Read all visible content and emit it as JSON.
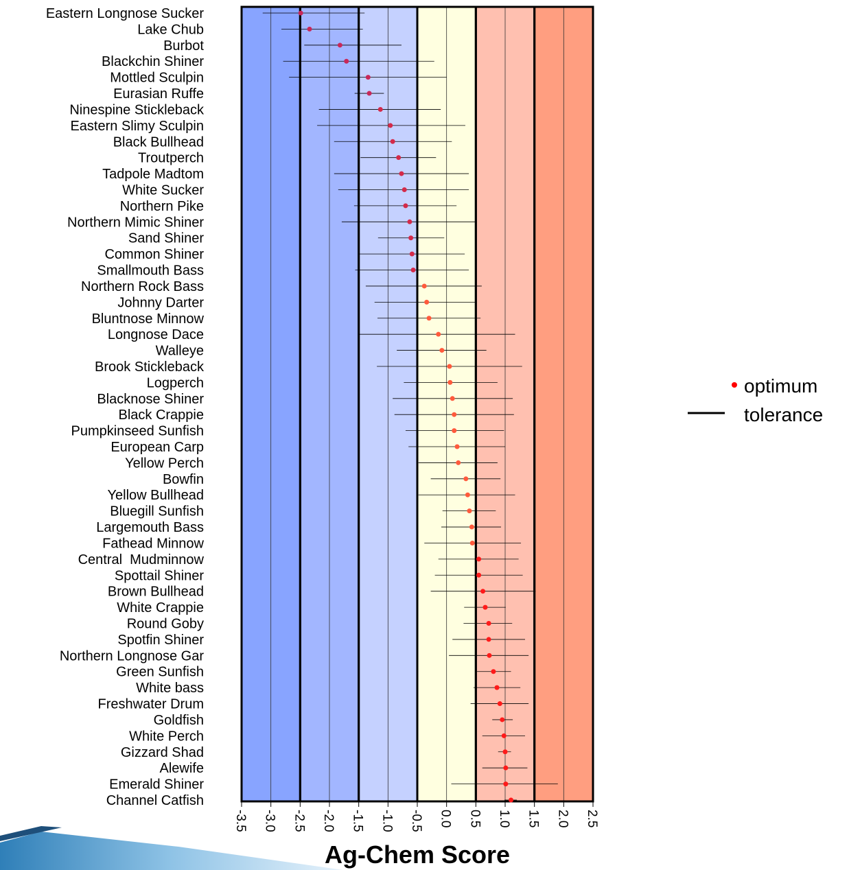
{
  "chart_data": {
    "type": "dotplot",
    "x_label": "Ag-Chem Score",
    "xlim": [
      -3.5,
      2.5
    ],
    "xticks": [
      -3.5,
      {
        "value": -3,
        "label": "-3.0"
      },
      -2.5,
      {
        "value": -2,
        "label": "-2.0"
      },
      -1.5,
      {
        "value": -1,
        "label": "-1.0"
      },
      -0.5,
      {
        "value": 0,
        "label": "0.0"
      },
      0.5,
      {
        "value": 1,
        "label": "1.0"
      },
      1.5,
      {
        "value": 2,
        "label": "2.0"
      },
      2.5
    ],
    "grid": true,
    "legend": "right",
    "bands": [
      {
        "from": -3.5,
        "to": -2.5,
        "color": "#88a4ff"
      },
      {
        "from": -2.5,
        "to": -1.5,
        "color": "#a2b6ff"
      },
      {
        "from": -1.5,
        "to": -0.5,
        "color": "#c5d1ff"
      },
      {
        "from": -0.5,
        "to": 0.5,
        "color": "#ffffe0"
      },
      {
        "from": 0.5,
        "to": 1.5,
        "color": "#ffc0b0"
      },
      {
        "from": 1.5,
        "to": 2.5,
        "color": "#ff9e80"
      }
    ],
    "categories": [
      "Eastern Longnose Sucker",
      "Lake Chub",
      "Burbot",
      "Blackchin Shiner",
      "Mottled Sculpin",
      "Eurasian Ruffe",
      "Ninespine Stickleback",
      "Eastern Slimy Sculpin",
      "Black Bullhead",
      "Troutperch",
      "Tadpole Madtom",
      "White Sucker",
      "Northern Pike",
      "Northern Mimic Shiner",
      "Sand Shiner",
      "Common Shiner",
      "Smallmouth Bass",
      "Northern Rock Bass",
      "Johnny Darter",
      "Bluntnose Minnow",
      "Longnose Dace",
      "Walleye",
      "Brook Stickleback",
      "Logperch",
      "Blacknose Shiner",
      "Black Crappie",
      "Pumpkinseed Sunfish",
      "European Carp",
      "Yellow Perch",
      "Bowfin",
      "Yellow Bullhead",
      "Bluegill Sunfish",
      "Largemouth Bass",
      "Fathead Minnow",
      "Central  Mudminnow",
      "Spottail Shiner",
      "Brown Bullhead",
      "White Crappie",
      "Round Goby",
      "Spotfin Shiner",
      "Northern Longnose Gar",
      "Green Sunfish",
      "White bass",
      "Freshwater Drum",
      "Goldfish",
      "White Perch",
      "Gizzard Shad",
      "Alewife",
      "Emerald Shiner",
      "Channel Catfish"
    ],
    "series": [
      {
        "name": "optimum",
        "color": "#ff0000",
        "values": [
          -2.49,
          -2.34,
          -1.82,
          -1.71,
          -1.34,
          -1.32,
          -1.13,
          -0.96,
          -0.92,
          -0.82,
          -0.77,
          -0.72,
          -0.7,
          -0.63,
          -0.61,
          -0.59,
          -0.57,
          -0.38,
          -0.34,
          -0.3,
          -0.14,
          -0.08,
          0.05,
          0.06,
          0.1,
          0.13,
          0.13,
          0.18,
          0.2,
          0.33,
          0.36,
          0.39,
          0.43,
          0.44,
          0.55,
          0.55,
          0.62,
          0.66,
          0.72,
          0.72,
          0.73,
          0.8,
          0.86,
          0.91,
          0.95,
          0.98,
          1.0,
          1.01,
          1.01,
          1.1
        ],
        "point_colors": [
          "#c8285a",
          "#c8285a",
          "#c8285a",
          "#c8285a",
          "#c8285a",
          "#c8285a",
          "#d42a4a",
          "#d42a4a",
          "#d42a4a",
          "#d42a4a",
          "#d42a4a",
          "#d42a4a",
          "#d42a4a",
          "#d42a4a",
          "#d42a4a",
          "#d42a4a",
          "#d42a4a",
          "#ff5a3c",
          "#ff5a3c",
          "#ff5a3c",
          "#ff5a3c",
          "#ff5a3c",
          "#ff5a3c",
          "#ff5a3c",
          "#ff5a3c",
          "#ff5a3c",
          "#ff5a3c",
          "#ff5a3c",
          "#ff5a3c",
          "#ff5a3c",
          "#ff5a3c",
          "#ff5a3c",
          "#ff5a3c",
          "#ff5a3c",
          "#ff1a1a",
          "#ff1a1a",
          "#ff1a1a",
          "#ff1a1a",
          "#ff1a1a",
          "#ff1a1a",
          "#ff1a1a",
          "#ff1a1a",
          "#ff1a1a",
          "#ff1a1a",
          "#ff1a1a",
          "#ff1a1a",
          "#ff1a1a",
          "#ff1a1a",
          "#ff1a1a",
          "#ff1a1a"
        ]
      },
      {
        "name": "tolerance",
        "color": "#000000",
        "low": [
          -3.14,
          -2.82,
          -2.43,
          -2.79,
          -2.69,
          -1.57,
          -2.18,
          -2.21,
          -1.92,
          -1.47,
          -1.92,
          -1.85,
          -1.58,
          -1.79,
          -1.17,
          -1.51,
          -1.56,
          -1.38,
          -1.23,
          -1.18,
          -1.51,
          -0.85,
          -1.19,
          -0.73,
          -0.92,
          -0.89,
          -0.7,
          -0.65,
          -0.48,
          -0.27,
          -0.48,
          -0.07,
          -0.09,
          -0.38,
          -0.14,
          -0.2,
          -0.27,
          0.3,
          0.29,
          0.1,
          0.04,
          0.52,
          0.46,
          0.41,
          0.78,
          0.61,
          0.88,
          0.61,
          0.08,
          0.99
        ],
        "high": [
          -1.4,
          -1.43,
          -0.77,
          -0.21,
          0.0,
          -1.07,
          -0.1,
          0.32,
          0.09,
          -0.18,
          0.38,
          0.38,
          0.17,
          0.5,
          -0.04,
          0.31,
          0.38,
          0.6,
          0.5,
          0.58,
          1.17,
          0.68,
          1.29,
          0.87,
          1.13,
          1.15,
          0.98,
          1.0,
          0.87,
          0.92,
          1.17,
          0.84,
          0.93,
          1.27,
          1.23,
          1.3,
          1.52,
          1.01,
          1.12,
          1.34,
          1.4,
          1.1,
          1.26,
          1.4,
          1.13,
          1.34,
          1.1,
          1.38,
          1.9,
          1.2
        ]
      }
    ]
  }
}
